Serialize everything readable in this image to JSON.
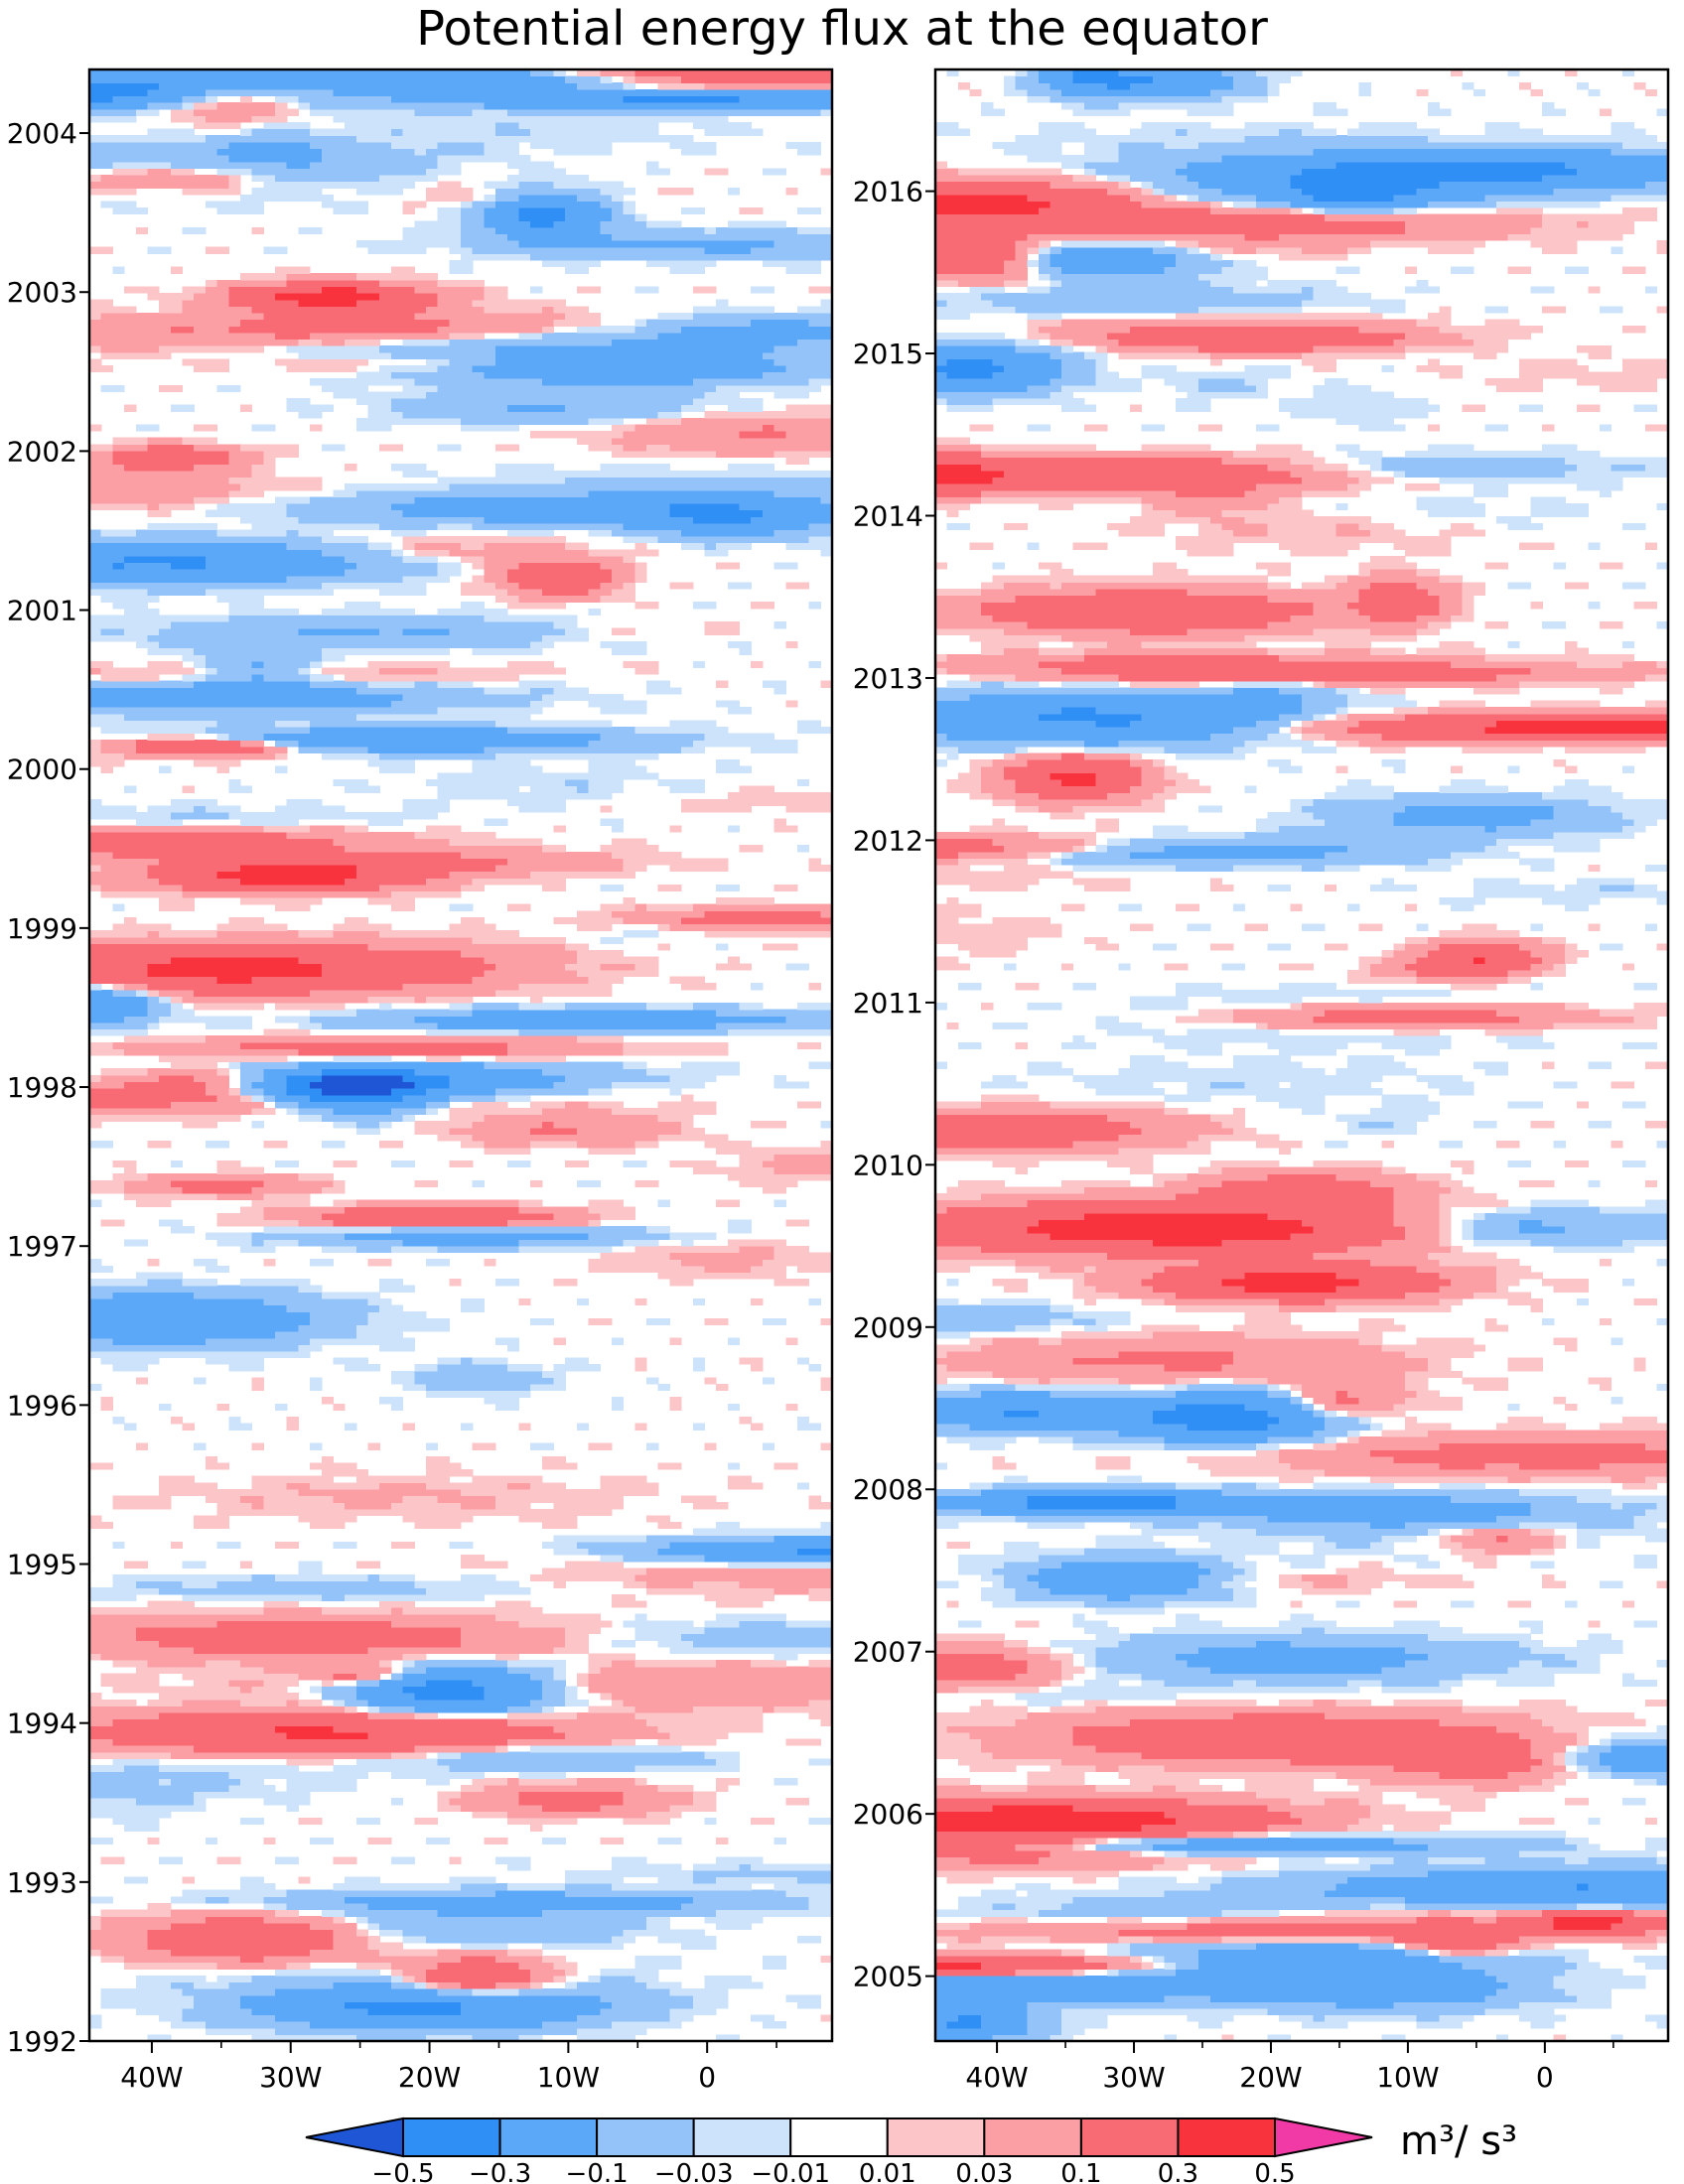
{
  "figure": {
    "title": "Potential energy flux at the equator"
  },
  "chart_data": [
    {
      "type": "heatmap",
      "title": "",
      "xlabel": "",
      "ylabel": "",
      "x_ticks": [
        "40W",
        "30W",
        "20W",
        "10W",
        "0"
      ],
      "x_tick_values": [
        -40,
        -30,
        -20,
        -10,
        0
      ],
      "xlim": [
        -44.5,
        9
      ],
      "y_ticks": [
        "1992",
        "1993",
        "1994",
        "1995",
        "1996",
        "1997",
        "1998",
        "1999",
        "2000",
        "2001",
        "2002",
        "2003",
        "2004"
      ],
      "y_tick_values": [
        1992,
        1993,
        1994,
        1995,
        1996,
        1997,
        1998,
        1999,
        2000,
        2001,
        2002,
        2003,
        2004
      ],
      "ylim": [
        1992.0,
        2004.4
      ],
      "field_seed": 7
    },
    {
      "type": "heatmap",
      "title": "",
      "xlabel": "",
      "ylabel": "",
      "x_ticks": [
        "40W",
        "30W",
        "20W",
        "10W",
        "0"
      ],
      "x_tick_values": [
        -40,
        -30,
        -20,
        -10,
        0
      ],
      "xlim": [
        -44.5,
        9
      ],
      "y_ticks": [
        "2005",
        "2006",
        "2007",
        "2008",
        "2009",
        "2010",
        "2011",
        "2012",
        "2013",
        "2014",
        "2015",
        "2016"
      ],
      "y_tick_values": [
        2005,
        2006,
        2007,
        2008,
        2009,
        2010,
        2011,
        2012,
        2013,
        2014,
        2015,
        2016
      ],
      "ylim": [
        2004.6,
        2016.75
      ],
      "field_seed": 23
    }
  ],
  "colorbar": {
    "unit": "m³/ s³",
    "levels": [
      "−0.5",
      "−0.3",
      "−0.1",
      "−0.03",
      "−0.01",
      "0.01",
      "0.03",
      "0.1",
      "0.3",
      "0.5"
    ],
    "colors": [
      "#1f56d6",
      "#2f8ff5",
      "#5ca8f8",
      "#93c3f9",
      "#cde3fc",
      "#ffffff",
      "#fcc6c8",
      "#fb9fa4",
      "#f86b74",
      "#f8333d",
      "#f23aa6"
    ]
  }
}
